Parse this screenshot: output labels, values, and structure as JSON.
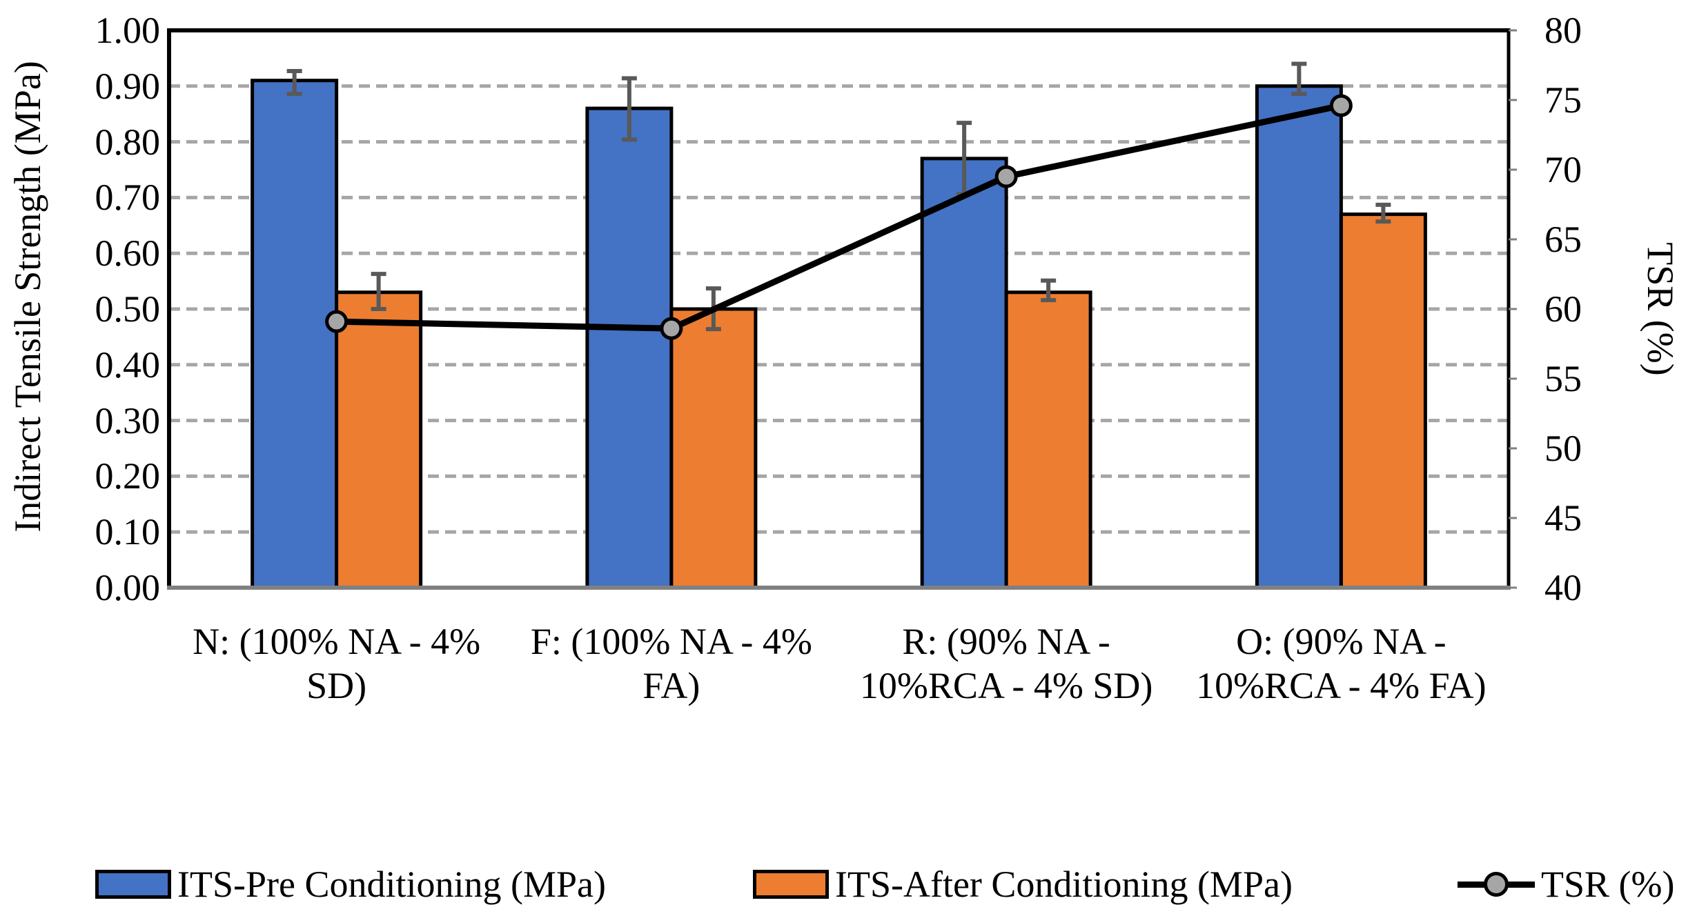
{
  "figure_title": "",
  "left_axis": {
    "title": "Indirect Tensile Strength (MPa)",
    "ticks": [
      "1.00",
      "0.90",
      "0.80",
      "0.70",
      "0.60",
      "0.50",
      "0.40",
      "0.30",
      "0.20",
      "0.10",
      "0.00"
    ]
  },
  "right_axis": {
    "title": "TSR (%)",
    "ticks": [
      "80",
      "75",
      "70",
      "65",
      "60",
      "55",
      "50",
      "45",
      "40"
    ]
  },
  "category_lines": [
    [
      "N: (100% NA - 4%",
      "SD)"
    ],
    [
      "F: (100% NA - 4%",
      "FA)"
    ],
    [
      "R: (90% NA -",
      "10%RCA - 4% SD)"
    ],
    [
      "O: (90% NA -",
      "10%RCA - 4% FA)"
    ]
  ],
  "legend": [
    {
      "label": "ITS-Pre Conditioning (MPa)",
      "swatch": "bar",
      "color": "#4472C4"
    },
    {
      "label": "ITS-After Conditioning (MPa)",
      "swatch": "bar",
      "color": "#ED7D31"
    },
    {
      "label": "TSR (%)",
      "swatch": "line-marker",
      "color": "#000000",
      "marker_fill": "#A6A6A6"
    }
  ],
  "colors": {
    "bar_pre": "#4472C4",
    "bar_after": "#ED7D31",
    "bar_border": "#000000",
    "tsr_line": "#000000",
    "tsr_marker_fill": "#A6A6A6",
    "error_bar": "#595959",
    "gridline": "#A6A6A6",
    "bottom_axis": "#808080",
    "plot_border": "#000000"
  },
  "chart_data": {
    "type": "combo",
    "categories": [
      "N: (100% NA - 4% SD)",
      "F: (100% NA - 4% FA)",
      "R: (90% NA - 10%RCA - 4% SD)",
      "O: (90% NA - 10%RCA - 4% FA)"
    ],
    "series": [
      {
        "name": "ITS-Pre Conditioning (MPa)",
        "type": "bar",
        "axis": "left",
        "color": "#4472C4",
        "values": [
          0.91,
          0.86,
          0.77,
          0.9
        ],
        "error_lo": [
          0.886,
          0.804,
          0.706,
          0.886
        ],
        "error_hi": [
          0.927,
          0.914,
          0.834,
          0.94
        ]
      },
      {
        "name": "ITS-After Conditioning (MPa)",
        "type": "bar",
        "axis": "left",
        "color": "#ED7D31",
        "values": [
          0.53,
          0.5,
          0.53,
          0.67
        ],
        "error_lo": [
          0.5,
          0.464,
          0.516,
          0.657
        ],
        "error_hi": [
          0.563,
          0.537,
          0.551,
          0.687
        ]
      },
      {
        "name": "TSR (%)",
        "type": "line",
        "axis": "right",
        "color": "#000000",
        "marker_fill": "#A6A6A6",
        "values": [
          59.1,
          58.6,
          69.5,
          74.6
        ]
      }
    ],
    "left_ylabel": "Indirect Tensile Strength (MPa)",
    "right_ylabel": "TSR (%)",
    "left_ylim": [
      0.0,
      1.0
    ],
    "left_tick_step": 0.1,
    "right_ylim": [
      40,
      80
    ],
    "right_tick_step": 5,
    "grid": "horizontal-dashed",
    "legend_position": "bottom"
  }
}
